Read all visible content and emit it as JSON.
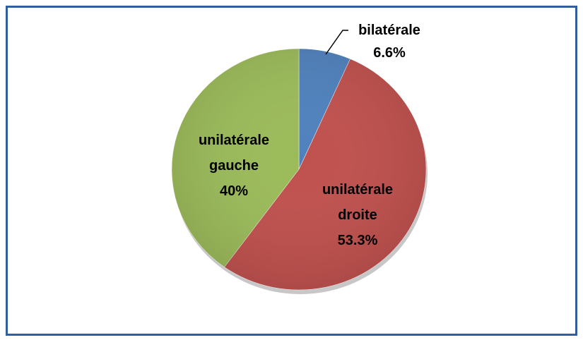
{
  "chart_data": {
    "type": "pie",
    "categories": [
      "bilatérale",
      "unilatérale droite",
      "unilatérale gauche"
    ],
    "values": [
      6.6,
      53.3,
      40
    ],
    "value_labels": [
      "6.6%",
      "53.3%",
      "40%"
    ],
    "colors": [
      "#4f81bd",
      "#c0504d",
      "#9bbb59"
    ]
  }
}
